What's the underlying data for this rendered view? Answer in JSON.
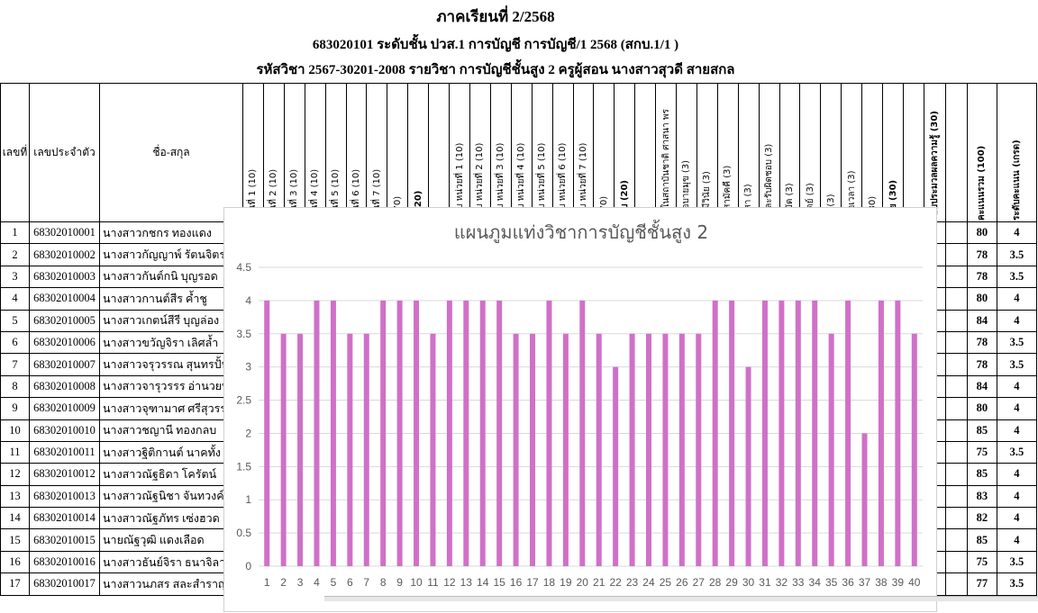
{
  "header": {
    "semester": "ภาคเรียนที่ 2/2568",
    "class_line": "683020101 ระดับชั้น ปวส.1 การบัญชี การบัญชี/1 2568 (สกบ.1/1 )",
    "course_line": "รหัสวิชา 2567-30201-2008   รายวิชา การบัญชีชั้นสูง 2   ครูผู้สอน นางสาวสุวดี สายสกล"
  },
  "table": {
    "col_no": "เลขที่",
    "col_id": "เลขประจำตัว",
    "col_name": "ชื่อ-สกุล",
    "score_columns": [
      "งานที่ 1 (10)",
      "งานที่ 2 (10)",
      "งานที่ 3 (10)",
      "งานที่ 4 (10)",
      "งานที่ 5 (10)",
      "งานที่ 6 (10)",
      "งานที่ 7 (10)",
      "ม(70)",
      "น (20)",
      "",
      "สอบ หน่วยที่ 1 (10)",
      "สอบ หน่วยที่ 2 (10)",
      "สอบ หน่วยที่ 3 (10)",
      "สอบ หน่วยที่ 4 (10)",
      "สอบ หน่วยที่ 5 (10)",
      "สอบ หน่วยที่ 6 (10)",
      "สอบ หน่วยที่ 7 (10)",
      "ม(70)",
      "สอบ (20)",
      "",
      "มั่นในสถาบันชาติ ศาสนา พร",
      "วินอบายมุข (3)",
      "กมมีวินัย (3)",
      "ามสามัคคี (3)",
      "อาสา (3)",
      "นและรับผิดชอบ (3)",
      "ะหยัด (3)",
      "อสัตย์ (3)",
      "าพ (3)",
      "งต่อเวลา (3)",
      "ม(30)",
      "พิสัย (30)",
      ""
    ],
    "col_knowledge": "ะบบประมวลผลความรู้ (30)",
    "col_blank": "",
    "col_total": "คะแนนรวม (100)",
    "col_grade": "ระดับคะแนน (เกรด)",
    "rows": [
      {
        "no": "1",
        "id": "68302010001",
        "name": "นางสาวกชกร    ทองแดง",
        "total": "80",
        "grade": "4"
      },
      {
        "no": "2",
        "id": "68302010002",
        "name": "นางสาวกัญญาพ์ รัตนจิตร",
        "total": "78",
        "grade": "3.5"
      },
      {
        "no": "3",
        "id": "68302010003",
        "name": "นางสาวกันต์กนิ บุญรอด",
        "total": "78",
        "grade": "3.5"
      },
      {
        "no": "4",
        "id": "68302010004",
        "name": "นางสาวกานต์สีร ค้ำชู",
        "total": "80",
        "grade": "4"
      },
      {
        "no": "5",
        "id": "68302010005",
        "name": "นางสาวเกตน์สีรี บุญล่อง",
        "total": "84",
        "grade": "4"
      },
      {
        "no": "6",
        "id": "68302010006",
        "name": "นางสาวขวัญจิรา เลิศล้ำ",
        "total": "78",
        "grade": "3.5"
      },
      {
        "no": "7",
        "id": "68302010007",
        "name": "นางสาวจรุวรรณ สุนทรปั้น",
        "total": "78",
        "grade": "3.5"
      },
      {
        "no": "8",
        "id": "68302010008",
        "name": "นางสาวจารุวรรร อ่านวยพร",
        "total": "84",
        "grade": "4"
      },
      {
        "no": "9",
        "id": "68302010009",
        "name": "นางสาวจุฑามาศ ศรีสุวรรณ",
        "total": "80",
        "grade": "4"
      },
      {
        "no": "10",
        "id": "68302010010",
        "name": "นางสาวชญานี    ทองกลบ",
        "total": "85",
        "grade": "4"
      },
      {
        "no": "11",
        "id": "68302010011",
        "name": "นางสาวฐิติกานต์ นาคทั้ง",
        "total": "75",
        "grade": "3.5"
      },
      {
        "no": "12",
        "id": "68302010012",
        "name": "นางสาวณัฐธิดา  โครัตน์",
        "total": "85",
        "grade": "4"
      },
      {
        "no": "13",
        "id": "68302010013",
        "name": "นางสาวณัฐนิชา จันทวงค์",
        "total": "83",
        "grade": "4"
      },
      {
        "no": "14",
        "id": "68302010014",
        "name": "นางสาวณัฐภัทร เซ่งฮวด",
        "total": "82",
        "grade": "4"
      },
      {
        "no": "15",
        "id": "68302010015",
        "name": "นายณัฐวุฒิ       แดงเลือด",
        "total": "85",
        "grade": "4"
      },
      {
        "no": "16",
        "id": "68302010016",
        "name": "นางสาวธันย์จิรา ธนาจิลาวัณ",
        "total": "75",
        "grade": "3.5"
      },
      {
        "no": "17",
        "id": "68302010017",
        "name": "นางสาวนภสร   สละสำราญ",
        "total": "77",
        "grade": "3.5"
      }
    ]
  },
  "chart_data": {
    "type": "bar",
    "title": "แผนภูมแท่งวิชาการบัญชีชั้นสูง 2",
    "categories": [
      "1",
      "2",
      "3",
      "4",
      "5",
      "6",
      "7",
      "8",
      "9",
      "10",
      "11",
      "12",
      "13",
      "14",
      "15",
      "16",
      "17",
      "18",
      "19",
      "20",
      "21",
      "22",
      "23",
      "24",
      "25",
      "26",
      "27",
      "28",
      "29",
      "30",
      "31",
      "32",
      "33",
      "34",
      "35",
      "36",
      "37",
      "38",
      "39",
      "40"
    ],
    "values": [
      4,
      3.5,
      3.5,
      4,
      4,
      3.5,
      3.5,
      4,
      4,
      4,
      3.5,
      4,
      4,
      4,
      4,
      3.5,
      3.5,
      4,
      3.5,
      4,
      3.5,
      3,
      3.5,
      3.5,
      3.5,
      3.5,
      3.5,
      4,
      4,
      3,
      4,
      4,
      4,
      4,
      3.5,
      4,
      2,
      4,
      4,
      3.5
    ],
    "yticks": [
      "0",
      "0.5",
      "1",
      "1.5",
      "2",
      "2.5",
      "3",
      "3.5",
      "4",
      "4.5"
    ],
    "ylim": [
      0,
      4.5
    ],
    "xlabel": "",
    "ylabel": "",
    "grid": true,
    "bar_color": "#d070c8"
  }
}
